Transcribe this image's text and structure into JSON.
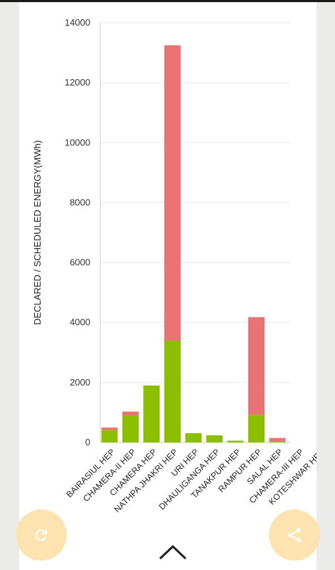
{
  "chart_data": {
    "type": "bar",
    "stacked": true,
    "ylabel": "DECLARED / SCHEDULED ENERGY(MWh)",
    "xlabel": "",
    "ylim": [
      0,
      14000
    ],
    "yticks": [
      0,
      2000,
      4000,
      6000,
      8000,
      10000,
      12000,
      14000
    ],
    "grid": true,
    "categories": [
      "BAIRASIUL HEP",
      "CHAMERA-II HEP",
      "CHAMERA HEP",
      "NATHPA JHAKRI HEP",
      "URI HEP",
      "DHAULIGANGA HEP",
      "TANAKPUR HEP",
      "RAMPUR HEP",
      "SALAL HEP",
      "CHAMERA-III HEP",
      "KOTESHWAR HEP"
    ],
    "series": [
      {
        "color": "#8bbf00",
        "values": [
          420,
          900,
          1900,
          3400,
          310,
          240,
          60,
          920,
          40,
          0,
          0
        ]
      },
      {
        "color": "#ea7373",
        "values": [
          80,
          130,
          0,
          9850,
          0,
          0,
          0,
          3260,
          110,
          0,
          0
        ]
      }
    ]
  },
  "fab": {
    "refresh_icon": "refresh-icon",
    "share_icon": "share-icon"
  },
  "nav": {
    "expand_icon": "chevron-up-icon"
  },
  "colors": {
    "fab": "#fde3b0",
    "fab_icon": "#ffffff",
    "grid": "#e8e8e8"
  }
}
